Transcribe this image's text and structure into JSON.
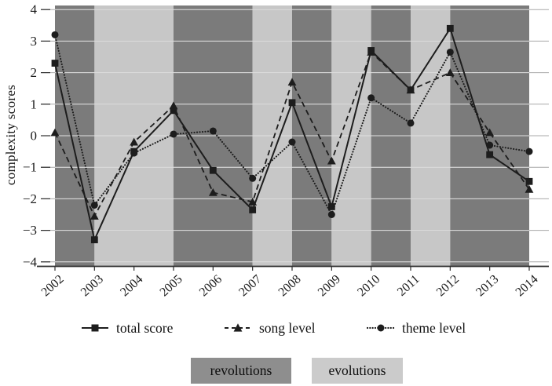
{
  "chart_data": {
    "type": "line",
    "title": "",
    "xlabel": "",
    "ylabel": "complexity scores",
    "ylim": [
      -4,
      4
    ],
    "yticks": [
      4,
      3,
      2,
      1,
      0,
      -1,
      -2,
      -3,
      -4
    ],
    "ytick_labels": [
      "4",
      "3",
      "2",
      "1",
      "0",
      "−1",
      "−2",
      "−3",
      "−4"
    ],
    "categories": [
      "2002",
      "2003",
      "2004",
      "2005",
      "2006",
      "2007",
      "2008",
      "2009",
      "2010",
      "2011",
      "2012",
      "2013",
      "2014"
    ],
    "grid": "horizontal",
    "legend_position": "bottom",
    "series": [
      {
        "name": "total score",
        "marker": "square",
        "line_style": "solid",
        "values": [
          2.3,
          -3.3,
          -0.5,
          0.8,
          -1.1,
          -2.35,
          1.05,
          -2.25,
          2.7,
          1.45,
          3.4,
          -0.6,
          -1.45
        ]
      },
      {
        "name": "song level",
        "marker": "triangle",
        "line_style": "dashed",
        "values": [
          0.1,
          -2.55,
          -0.2,
          0.95,
          -1.8,
          -2.1,
          1.7,
          -0.8,
          2.65,
          1.45,
          2.0,
          0.1,
          -1.7
        ]
      },
      {
        "name": "theme level",
        "marker": "circle",
        "line_style": "dotted",
        "values": [
          3.2,
          -2.2,
          -0.55,
          0.05,
          0.15,
          -1.35,
          -0.2,
          -2.5,
          1.2,
          0.4,
          2.65,
          -0.3,
          -0.5
        ]
      }
    ],
    "bands": [
      {
        "from": "2002",
        "to": "2003",
        "type": "revolution"
      },
      {
        "from": "2003",
        "to": "2005",
        "type": "evolution"
      },
      {
        "from": "2005",
        "to": "2007",
        "type": "revolution"
      },
      {
        "from": "2007",
        "to": "2008",
        "type": "evolution"
      },
      {
        "from": "2008",
        "to": "2009",
        "type": "revolution"
      },
      {
        "from": "2009",
        "to": "2010",
        "type": "evolution"
      },
      {
        "from": "2010",
        "to": "2011",
        "type": "revolution"
      },
      {
        "from": "2011",
        "to": "2012",
        "type": "evolution"
      },
      {
        "from": "2012",
        "to": "2014",
        "type": "revolution"
      }
    ],
    "colors": {
      "revolution_band": "#7b7b7b",
      "evolution_band": "#c7c7c7",
      "series_ink": "#1d1d1d",
      "gridline": "#a8a8a8",
      "gridline_on_band": "#ffffff",
      "axis": "#2e2e2e",
      "text": "#1a1a1a",
      "revolutions_box": "#8e8e8e",
      "evolutions_box": "#cbcbcb",
      "background": "#ffffff"
    }
  },
  "series_legend": {
    "items": [
      {
        "label": "total score",
        "marker_icon": "square-on-solid-line-icon"
      },
      {
        "label": "song level",
        "marker_icon": "triangle-on-dashed-line-icon"
      },
      {
        "label": "theme level",
        "marker_icon": "circle-on-dotted-line-icon"
      }
    ]
  },
  "band_legend": {
    "revolutions_label": "revolutions",
    "evolutions_label": "evolutions"
  }
}
